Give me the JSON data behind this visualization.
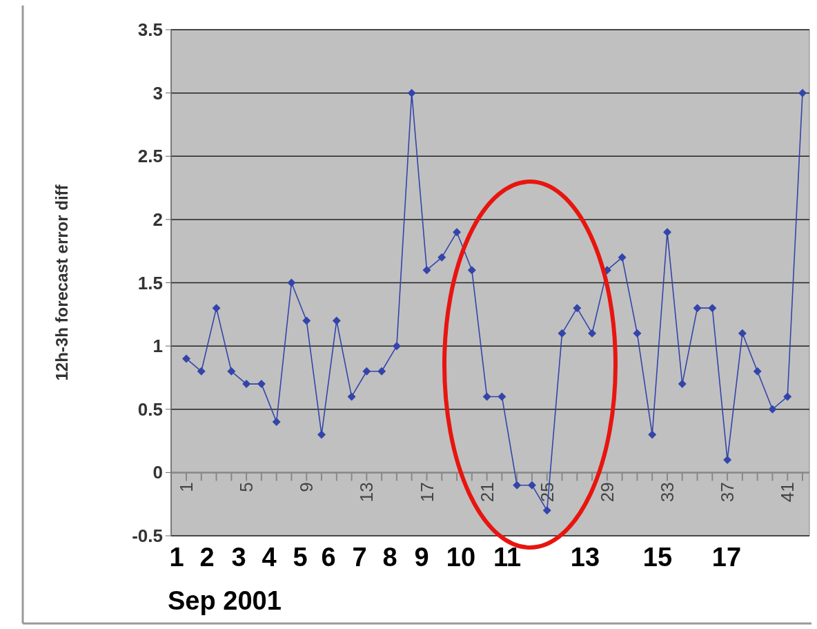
{
  "chart_data": {
    "type": "line",
    "ylabel": "12h-3h forecast error diff",
    "categories": [
      "1",
      null,
      null,
      null,
      "5",
      null,
      null,
      null,
      "9",
      null,
      null,
      null,
      "13",
      null,
      null,
      null,
      "17",
      null,
      null,
      null,
      "21",
      null,
      null,
      null,
      "25",
      null,
      null,
      null,
      "29",
      null,
      null,
      null,
      "33",
      null,
      null,
      null,
      "37",
      null,
      null,
      null,
      "41",
      null
    ],
    "series": [
      {
        "color": "#3344aa",
        "values": [
          0.9,
          0.8,
          1.3,
          0.8,
          0.7,
          0.7,
          0.4,
          1.5,
          1.2,
          0.3,
          1.2,
          0.6,
          0.8,
          0.8,
          1.0,
          3.0,
          1.6,
          1.7,
          1.9,
          1.6,
          0.6,
          0.6,
          -0.1,
          -0.1,
          -0.3,
          1.1,
          1.3,
          1.1,
          1.6,
          1.7,
          1.1,
          0.3,
          1.9,
          0.7,
          1.3,
          1.3,
          0.1,
          1.1,
          0.8,
          0.5,
          0.6,
          3.0
        ]
      }
    ],
    "ylim": [
      -0.5,
      3.5
    ],
    "yticks": [
      -0.5,
      0,
      0.5,
      1,
      1.5,
      2,
      2.5,
      3,
      3.5
    ],
    "grid": "y",
    "marker": "diamond",
    "line_style": "solid",
    "annotations": [
      "1",
      "2",
      "3",
      "4",
      "5",
      "6",
      "7",
      "8",
      "9",
      "10",
      "11",
      "13",
      "15",
      "17",
      "Sep 2001"
    ]
  }
}
